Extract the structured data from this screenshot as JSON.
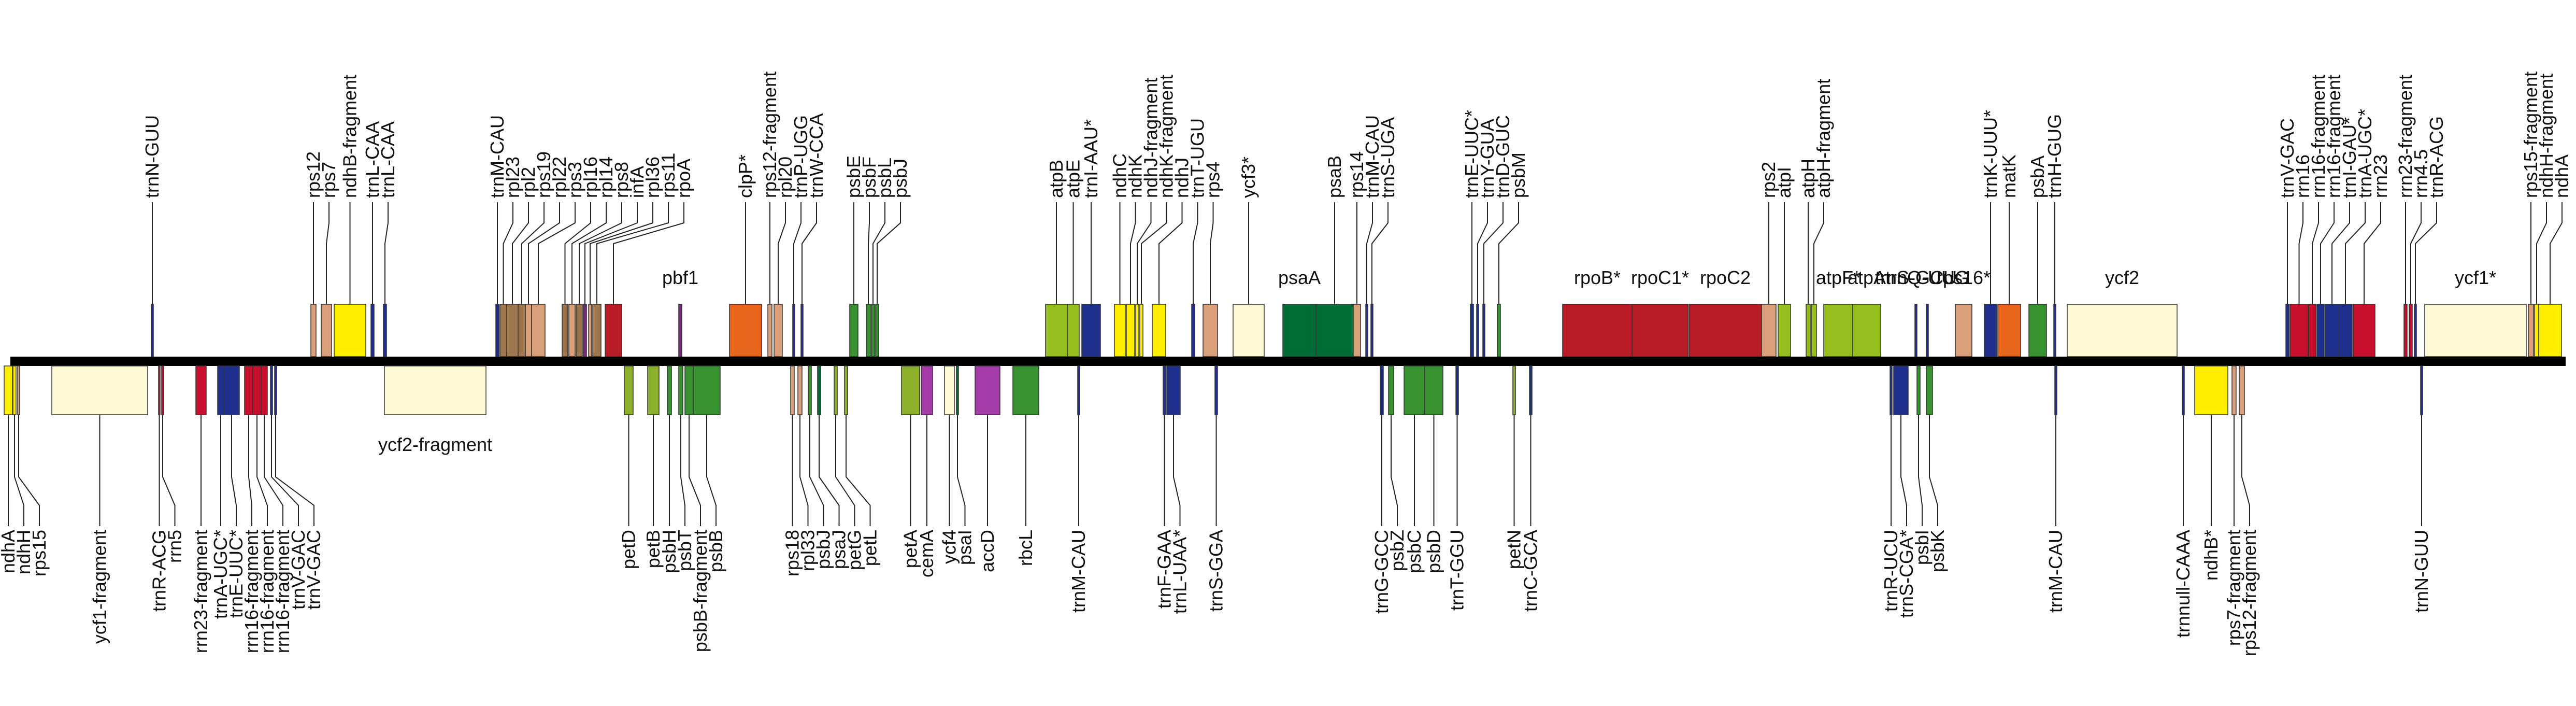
{
  "chart_data": {
    "type": "gene-map",
    "colors": {
      "backbone": "#000000",
      "rps_rpl": "#d9a07a",
      "rps_rpl_dark": "#a0784f",
      "ndh": "#ffee00",
      "trna": "#1f2f8e",
      "rrna": "#c8102e",
      "ycf": "#fff9d6",
      "photosystem_I": "#006c35",
      "photosystem_II": "#38922f",
      "cytochrome": "#8db02b",
      "atp": "#95bf1f",
      "rpo": "#b81c26",
      "clp": "#e8651c",
      "cema": "#a53ba8",
      "pbf1": "#7a2a7a",
      "matk": "#e8651c"
    },
    "genes": [
      {
        "label": "ndhA",
        "strand": "-",
        "start": 8,
        "end": 24,
        "cls": "ndh"
      },
      {
        "label": "ndhH",
        "strand": "-",
        "start": 25,
        "end": 31,
        "cls": "ndh"
      },
      {
        "label": "rps15",
        "strand": "-",
        "start": 34,
        "end": 38,
        "cls": "rps_rpl"
      },
      {
        "label": "ycf1-fragment",
        "strand": "-",
        "start": 100,
        "end": 285,
        "cls": "ycf"
      },
      {
        "label": "trnR-ACG",
        "strand": "-",
        "start": 306,
        "end": 309,
        "cls": "rrna"
      },
      {
        "label": "rrn5",
        "strand": "-",
        "start": 312,
        "end": 316,
        "cls": "rrna"
      },
      {
        "label": "rrn23-fragment",
        "strand": "-",
        "start": 378,
        "end": 398,
        "cls": "rrna"
      },
      {
        "label": "trnA-UGC*",
        "strand": "-",
        "start": 420,
        "end": 432,
        "cls": "trna"
      },
      {
        "label": "trnE-UUC*",
        "strand": "-",
        "start": 432,
        "end": 462,
        "cls": "trna"
      },
      {
        "label": "rrn16-fragment",
        "strand": "-",
        "start": 472,
        "end": 488,
        "cls": "rrna"
      },
      {
        "label": "rrn16-fragment",
        "strand": "-",
        "start": 488,
        "end": 504,
        "cls": "rrna"
      },
      {
        "label": "rrn16-fragment",
        "strand": "-",
        "start": 504,
        "end": 516,
        "cls": "rrna"
      },
      {
        "label": "trnV-GAC",
        "strand": "-",
        "start": 522,
        "end": 526,
        "cls": "trna"
      },
      {
        "label": "trnV-GAC",
        "strand": "-",
        "start": 530,
        "end": 534,
        "cls": "trna"
      },
      {
        "label": "ycf2-fragment",
        "strand": "-",
        "start": 742,
        "end": 938,
        "cls": "ycf",
        "name_inline": true
      },
      {
        "label": "petD",
        "strand": "-",
        "start": 1205,
        "end": 1222,
        "cls": "cytochrome"
      },
      {
        "label": "petB",
        "strand": "-",
        "start": 1250,
        "end": 1272,
        "cls": "cytochrome"
      },
      {
        "label": "psbH",
        "strand": "-",
        "start": 1288,
        "end": 1296,
        "cls": "photosystem_II"
      },
      {
        "label": "psbT",
        "strand": "-",
        "start": 1310,
        "end": 1318,
        "cls": "photosystem_II"
      },
      {
        "label": "psbB-fragment",
        "strand": "-",
        "start": 1322,
        "end": 1338,
        "cls": "photosystem_II"
      },
      {
        "label": "psbB",
        "strand": "-",
        "start": 1338,
        "end": 1390,
        "cls": "photosystem_II"
      },
      {
        "label": "rps18",
        "strand": "-",
        "start": 1526,
        "end": 1533,
        "cls": "rps_rpl"
      },
      {
        "label": "rpl33",
        "strand": "-",
        "start": 1540,
        "end": 1548,
        "cls": "rps_rpl"
      },
      {
        "label": "psbJ",
        "strand": "-",
        "start": 1560,
        "end": 1566,
        "cls": "photosystem_II"
      },
      {
        "label": "psaJ",
        "strand": "-",
        "start": 1578,
        "end": 1584,
        "cls": "photosystem_I"
      },
      {
        "label": "petG",
        "strand": "-",
        "start": 1610,
        "end": 1616,
        "cls": "cytochrome"
      },
      {
        "label": "petL",
        "strand": "-",
        "start": 1630,
        "end": 1636,
        "cls": "cytochrome"
      },
      {
        "label": "petA",
        "strand": "-",
        "start": 1740,
        "end": 1775,
        "cls": "cytochrome"
      },
      {
        "label": "cemA",
        "strand": "-",
        "start": 1778,
        "end": 1800,
        "cls": "cema"
      },
      {
        "label": "ycf4",
        "strand": "-",
        "start": 1823,
        "end": 1842,
        "cls": "ycf"
      },
      {
        "label": "psaI",
        "strand": "-",
        "start": 1846,
        "end": 1850,
        "cls": "photosystem_I"
      },
      {
        "label": "accD",
        "strand": "-",
        "start": 1882,
        "end": 1930,
        "cls": "cema"
      },
      {
        "label": "rbcL",
        "strand": "-",
        "start": 1955,
        "end": 2005,
        "cls": "photosystem_II",
        "name_below_near": true
      },
      {
        "label": "trnM-CAU",
        "strand": "-",
        "start": 2080,
        "end": 2084,
        "cls": "trna"
      },
      {
        "label": "trnF-GAA",
        "strand": "-",
        "start": 2245,
        "end": 2250,
        "cls": "trna"
      },
      {
        "label": "trnL-UAA*",
        "strand": "-",
        "start": 2252,
        "end": 2278,
        "cls": "trna"
      },
      {
        "label": "trnS-GGA",
        "strand": "-",
        "start": 2345,
        "end": 2350,
        "cls": "trna"
      },
      {
        "label": "trnG-GCC",
        "strand": "-",
        "start": 2664,
        "end": 2670,
        "cls": "trna"
      },
      {
        "label": "psbZ",
        "strand": "-",
        "start": 2680,
        "end": 2690,
        "cls": "photosystem_II"
      },
      {
        "label": "psbC",
        "strand": "-",
        "start": 2710,
        "end": 2750,
        "cls": "photosystem_II"
      },
      {
        "label": "psbD",
        "strand": "-",
        "start": 2750,
        "end": 2785,
        "cls": "photosystem_II"
      },
      {
        "label": "trnT-GGU",
        "strand": "-",
        "start": 2810,
        "end": 2815,
        "cls": "trna"
      },
      {
        "label": "petN",
        "strand": "-",
        "start": 2920,
        "end": 2925,
        "cls": "cytochrome"
      },
      {
        "label": "trnC-GCA",
        "strand": "-",
        "start": 2952,
        "end": 2957,
        "cls": "trna"
      },
      {
        "label": "trnR-UCU",
        "strand": "-",
        "start": 3648,
        "end": 3652,
        "cls": "trna"
      },
      {
        "label": "trnS-CGA*",
        "strand": "-",
        "start": 3655,
        "end": 3683,
        "cls": "trna"
      },
      {
        "label": "psbI",
        "strand": "-",
        "start": 3700,
        "end": 3706,
        "cls": "photosystem_II"
      },
      {
        "label": "psbK",
        "strand": "-",
        "start": 3718,
        "end": 3730,
        "cls": "photosystem_II"
      },
      {
        "label": "trnM-CAU",
        "strand": "-",
        "start": 3966,
        "end": 3970,
        "cls": "trna"
      },
      {
        "label": "trnnull-CAAA",
        "strand": "-",
        "start": 4212,
        "end": 4216,
        "cls": "trna"
      },
      {
        "label": "ndhB*",
        "strand": "-",
        "start": 4236,
        "end": 4300,
        "cls": "ndh"
      },
      {
        "label": "rps7-fragment",
        "strand": "-",
        "start": 4308,
        "end": 4316,
        "cls": "rps_rpl"
      },
      {
        "label": "rps12-fragment",
        "strand": "-",
        "start": 4322,
        "end": 4332,
        "cls": "rps_rpl"
      },
      {
        "label": "trnN-GUU",
        "strand": "-",
        "start": 4672,
        "end": 4676,
        "cls": "trna"
      },
      {
        "label": "trnN-GUU",
        "strand": "+",
        "start": 292,
        "end": 296,
        "cls": "trna"
      },
      {
        "label": "rps12",
        "strand": "+",
        "start": 600,
        "end": 610,
        "cls": "rps_rpl"
      },
      {
        "label": "rps7",
        "strand": "+",
        "start": 620,
        "end": 640,
        "cls": "rps_rpl"
      },
      {
        "label": "ndhB-fragment",
        "strand": "+",
        "start": 645,
        "end": 706,
        "cls": "ndh"
      },
      {
        "label": "trnL-CAA",
        "strand": "+",
        "start": 716,
        "end": 722,
        "cls": "trna"
      },
      {
        "label": "trnL-CAA",
        "strand": "+",
        "start": 740,
        "end": 746,
        "cls": "trna"
      },
      {
        "label": "trnM-CAU",
        "strand": "+",
        "start": 957,
        "end": 963,
        "cls": "trna"
      },
      {
        "label": "rpl23",
        "strand": "+",
        "start": 965,
        "end": 978,
        "cls": "rps_rpl_dark"
      },
      {
        "label": "rpl2",
        "strand": "+",
        "start": 978,
        "end": 1000,
        "cls": "rps_rpl_dark"
      },
      {
        "label": "rps19",
        "strand": "+",
        "start": 1000,
        "end": 1014,
        "cls": "rps_rpl_dark"
      },
      {
        "label": "rpl22",
        "strand": "+",
        "start": 1014,
        "end": 1026,
        "cls": "rps_rpl"
      },
      {
        "label": "rps3",
        "strand": "+",
        "start": 1026,
        "end": 1052,
        "cls": "rps_rpl"
      },
      {
        "label": "rpl16",
        "strand": "+",
        "start": 1085,
        "end": 1096,
        "cls": "rps_rpl_dark"
      },
      {
        "label": "rpl14",
        "strand": "+",
        "start": 1098,
        "end": 1110,
        "cls": "rps_rpl"
      },
      {
        "label": "rps8",
        "strand": "+",
        "start": 1112,
        "end": 1124,
        "cls": "rps_rpl_dark"
      },
      {
        "label": "infA",
        "strand": "+",
        "start": 1126,
        "end": 1132,
        "cls": "pbf1"
      },
      {
        "label": "rpl36",
        "strand": "+",
        "start": 1136,
        "end": 1142,
        "cls": "rps_rpl"
      },
      {
        "label": "rps11",
        "strand": "+",
        "start": 1144,
        "end": 1160,
        "cls": "rps_rpl_dark"
      },
      {
        "label": "rpoA",
        "strand": "+",
        "start": 1168,
        "end": 1200,
        "cls": "rpo"
      },
      {
        "label": "pbf1",
        "strand": "+",
        "start": 1310,
        "end": 1316,
        "cls": "pbf1",
        "name_inline": true
      },
      {
        "label": "clpP*",
        "strand": "+",
        "start": 1408,
        "end": 1470,
        "cls": "clp"
      },
      {
        "label": "rps12-fragment",
        "strand": "+",
        "start": 1482,
        "end": 1490,
        "cls": "rps_rpl"
      },
      {
        "label": "rpl20",
        "strand": "+",
        "start": 1494,
        "end": 1510,
        "cls": "rps_rpl"
      },
      {
        "label": "trnP-UGG",
        "strand": "+",
        "start": 1530,
        "end": 1534,
        "cls": "trna"
      },
      {
        "label": "trnW-CCA",
        "strand": "+",
        "start": 1546,
        "end": 1550,
        "cls": "trna"
      },
      {
        "label": "psbE",
        "strand": "+",
        "start": 1640,
        "end": 1656,
        "cls": "photosystem_II"
      },
      {
        "label": "psbF",
        "strand": "+",
        "start": 1672,
        "end": 1680,
        "cls": "photosystem_II"
      },
      {
        "label": "psbL",
        "strand": "+",
        "start": 1682,
        "end": 1688,
        "cls": "photosystem_II"
      },
      {
        "label": "psbJ",
        "strand": "+",
        "start": 1690,
        "end": 1696,
        "cls": "photosystem_II"
      },
      {
        "label": "atpB",
        "strand": "+",
        "start": 2018,
        "end": 2060,
        "cls": "atp"
      },
      {
        "label": "atpE",
        "strand": "+",
        "start": 2060,
        "end": 2083,
        "cls": "atp"
      },
      {
        "label": "trnI-AAU*",
        "strand": "+",
        "start": 2088,
        "end": 2124,
        "cls": "trna"
      },
      {
        "label": "ndhC",
        "strand": "+",
        "start": 2151,
        "end": 2172,
        "cls": "ndh"
      },
      {
        "label": "ndhK",
        "strand": "+",
        "start": 2174,
        "end": 2190,
        "cls": "ndh"
      },
      {
        "label": "ndhJ-fragment",
        "strand": "+",
        "start": 2192,
        "end": 2198,
        "cls": "ndh"
      },
      {
        "label": "ndhK-fragment",
        "strand": "+",
        "start": 2200,
        "end": 2206,
        "cls": "ndh"
      },
      {
        "label": "ndhJ",
        "strand": "+",
        "start": 2224,
        "end": 2250,
        "cls": "ndh"
      },
      {
        "label": "trnT-UGU",
        "strand": "+",
        "start": 2300,
        "end": 2306,
        "cls": "trna"
      },
      {
        "label": "rps4",
        "strand": "+",
        "start": 2322,
        "end": 2350,
        "cls": "rps_rpl"
      },
      {
        "label": "ycf3*",
        "strand": "+",
        "start": 2380,
        "end": 2440,
        "cls": "ycf"
      },
      {
        "label": "psaA",
        "strand": "+",
        "start": 2476,
        "end": 2540,
        "cls": "photosystem_I",
        "name_inline": true
      },
      {
        "label": "psaB",
        "strand": "+",
        "start": 2540,
        "end": 2612,
        "cls": "photosystem_I"
      },
      {
        "label": "rps14",
        "strand": "+",
        "start": 2612,
        "end": 2626,
        "cls": "rps_rpl"
      },
      {
        "label": "trnM-CAU",
        "strand": "+",
        "start": 2636,
        "end": 2640,
        "cls": "trna"
      },
      {
        "label": "trnS-UGA",
        "strand": "+",
        "start": 2646,
        "end": 2650,
        "cls": "trna"
      },
      {
        "label": "trnE-UUC*",
        "strand": "+",
        "start": 2838,
        "end": 2844,
        "cls": "trna"
      },
      {
        "label": "trnY-GUA",
        "strand": "+",
        "start": 2850,
        "end": 2854,
        "cls": "trna"
      },
      {
        "label": "trnD-GUC",
        "strand": "+",
        "start": 2862,
        "end": 2866,
        "cls": "trna"
      },
      {
        "label": "psbM",
        "strand": "+",
        "start": 2890,
        "end": 2896,
        "cls": "photosystem_II"
      },
      {
        "label": "rpoB*",
        "strand": "+",
        "start": 3016,
        "end": 3150,
        "cls": "rpo",
        "name_inline": true
      },
      {
        "label": "rpoC1*",
        "strand": "+",
        "start": 3150,
        "end": 3258,
        "cls": "rpo",
        "name_inline": true
      },
      {
        "label": "rpoC2",
        "strand": "+",
        "start": 3260,
        "end": 3400,
        "cls": "rpo",
        "name_inline": true
      },
      {
        "label": "rps2",
        "strand": "+",
        "start": 3400,
        "end": 3428,
        "cls": "rps_rpl"
      },
      {
        "label": "atpI",
        "strand": "+",
        "start": 3432,
        "end": 3456,
        "cls": "atp"
      },
      {
        "label": "atpH",
        "strand": "+",
        "start": 3486,
        "end": 3494,
        "cls": "atp"
      },
      {
        "label": "atpH-fragment",
        "strand": "+",
        "start": 3496,
        "end": 3506,
        "cls": "atp"
      },
      {
        "label": "atpF*",
        "strand": "+",
        "start": 3520,
        "end": 3576,
        "cls": "atp",
        "name_inline": true
      },
      {
        "label": "atpA",
        "strand": "+",
        "start": 3576,
        "end": 3630,
        "cls": "atp",
        "name_inline": true
      },
      {
        "label": "trnS-GCU",
        "strand": "+",
        "start": 3696,
        "end": 3700,
        "cls": "trna",
        "name_inline": true
      },
      {
        "label": "trnQ-UUG",
        "strand": "+",
        "start": 3718,
        "end": 3722,
        "cls": "trna",
        "name_inline": true
      },
      {
        "label": "rps16*",
        "strand": "+",
        "start": 3774,
        "end": 3806,
        "cls": "rps_rpl",
        "name_inline": true
      },
      {
        "label": "trnK-UUU*",
        "strand": "+",
        "start": 3830,
        "end": 3854,
        "cls": "trna"
      },
      {
        "label": "matK",
        "strand": "+",
        "start": 3856,
        "end": 3900,
        "cls": "matk"
      },
      {
        "label": "psbA",
        "strand": "+",
        "start": 3916,
        "end": 3950,
        "cls": "photosystem_II"
      },
      {
        "label": "trnH-GUG",
        "strand": "+",
        "start": 3964,
        "end": 3968,
        "cls": "trna"
      },
      {
        "label": "ycf2",
        "strand": "+",
        "start": 3990,
        "end": 4202,
        "cls": "ycf",
        "name_inline": true
      },
      {
        "label": "trnV-GAC",
        "strand": "+",
        "start": 4412,
        "end": 4418,
        "cls": "trna"
      },
      {
        "label": "rrn16",
        "strand": "+",
        "start": 4420,
        "end": 4455,
        "cls": "rrna"
      },
      {
        "label": "rrn16-fragment",
        "strand": "+",
        "start": 4456,
        "end": 4470,
        "cls": "rrna"
      },
      {
        "label": "rrn16-fragment",
        "strand": "+",
        "start": 4472,
        "end": 4486,
        "cls": "trna"
      },
      {
        "label": "trnI-GAU*",
        "strand": "+",
        "start": 4488,
        "end": 4514,
        "cls": "trna"
      },
      {
        "label": "trnA-UGC*",
        "strand": "+",
        "start": 4514,
        "end": 4540,
        "cls": "trna"
      },
      {
        "label": "rrn23",
        "strand": "+",
        "start": 4542,
        "end": 4584,
        "cls": "rrna"
      },
      {
        "label": "rrn23-fragment",
        "strand": "+",
        "start": 4640,
        "end": 4646,
        "cls": "rrna"
      },
      {
        "label": "rrn4.5",
        "strand": "+",
        "start": 4650,
        "end": 4656,
        "cls": "rrna"
      },
      {
        "label": "trnR-ACG",
        "strand": "+",
        "start": 4660,
        "end": 4664,
        "cls": "trna"
      },
      {
        "label": "ycf1*",
        "strand": "+",
        "start": 4680,
        "end": 4876,
        "cls": "ycf",
        "name_inline": true
      },
      {
        "label": "rps15-fragment",
        "strand": "+",
        "start": 4880,
        "end": 4890,
        "cls": "rps_rpl"
      },
      {
        "label": "ndhH-fragment",
        "strand": "+",
        "start": 4892,
        "end": 4900,
        "cls": "ndh"
      },
      {
        "label": "ndhA",
        "strand": "+",
        "start": 4900,
        "end": 4944,
        "cls": "ndh"
      }
    ]
  }
}
